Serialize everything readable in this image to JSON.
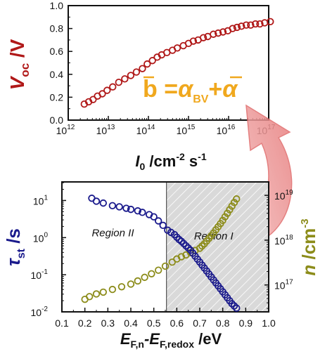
{
  "colors": {
    "top_series": "#b01818",
    "tau_series": "#1a1a8c",
    "n_series": "#8c8c1a",
    "equation": "#f0a81e",
    "arrow": "#e88a8a",
    "region_shade": "#d8d8d8"
  },
  "equation": {
    "b": "b",
    "eq": " =",
    "alpha": "α",
    "bv": "BV",
    "plus": "+",
    "alpha2": "α"
  },
  "chart_data": [
    {
      "type": "scatter",
      "xscale": "log",
      "xlim_exp": [
        12,
        17
      ],
      "ylim": [
        0.0,
        1.0
      ],
      "grid": false,
      "x_tick_labels": [
        "10",
        "10",
        "10",
        "10",
        "10",
        "10"
      ],
      "x_tick_exponents": [
        "12",
        "13",
        "14",
        "15",
        "16",
        "17"
      ],
      "y_tick_labels": [
        "0.0",
        "0.2",
        "0.4",
        "0.6",
        "0.8",
        "1.0"
      ],
      "xlabel": {
        "main": "I",
        "sub": "0",
        "rest": " /cm",
        "sup": "-2",
        "rest2": " s",
        "sup2": "-1"
      },
      "ylabel": {
        "main": "V",
        "sub": "oc",
        "rest": " /V"
      },
      "series": [
        {
          "marker": "circle-open",
          "x_exp": [
            12.4,
            12.51,
            12.62,
            12.73,
            12.85,
            12.97,
            13.11,
            13.26,
            13.41,
            13.56,
            13.7,
            13.85,
            13.97,
            14.1,
            14.22,
            14.33,
            14.46,
            14.6,
            14.72,
            14.87,
            15.0,
            15.12,
            15.24,
            15.37,
            15.48,
            15.62,
            15.74,
            15.86,
            15.98,
            16.1,
            16.21,
            16.32,
            16.44,
            16.55,
            16.67,
            16.78,
            16.9,
            17.04
          ],
          "y": [
            0.14,
            0.16,
            0.18,
            0.21,
            0.23,
            0.26,
            0.29,
            0.33,
            0.36,
            0.39,
            0.42,
            0.45,
            0.49,
            0.52,
            0.55,
            0.57,
            0.59,
            0.61,
            0.63,
            0.65,
            0.67,
            0.69,
            0.7,
            0.72,
            0.73,
            0.75,
            0.76,
            0.77,
            0.78,
            0.8,
            0.81,
            0.82,
            0.83,
            0.83,
            0.84,
            0.84,
            0.85,
            0.86
          ]
        }
      ]
    },
    {
      "type": "scatter",
      "xlim": [
        0.1,
        1.0
      ],
      "y_left_scale": "log",
      "y_left_exp_range": [
        -2,
        1.5
      ],
      "y_right_scale": "log",
      "y_right_exp_range": [
        16.4,
        19.3
      ],
      "grid": false,
      "x_tick_labels": [
        "0.1",
        "0.2",
        "0.3",
        "0.4",
        "0.5",
        "0.6",
        "0.7",
        "0.8",
        "0.9",
        "1.0"
      ],
      "y_left_tick_exponents": [
        "-2",
        "-1",
        "0",
        "1"
      ],
      "y_right_tick_exponents": [
        "17",
        "18",
        "19"
      ],
      "xlabel": {
        "main": "E",
        "sub": "F,n",
        "mid": "-E",
        "sub2": "F,redox",
        "rest": " /eV"
      },
      "ylabel_left": {
        "main": "τ",
        "sub": "st",
        "rest": " /s"
      },
      "ylabel_right": {
        "main": "n",
        "rest": " /cm",
        "sup": "-3"
      },
      "regions": [
        {
          "label": "Region II",
          "x_start": 0.1,
          "x_end": 0.555,
          "shaded": false
        },
        {
          "label": "Region I",
          "x_start": 0.555,
          "x_end": 1.0,
          "shaded": true
        }
      ],
      "series": [
        {
          "axis": "left",
          "marker": "circle-open",
          "x": [
            0.23,
            0.25,
            0.28,
            0.32,
            0.35,
            0.38,
            0.4,
            0.43,
            0.45,
            0.48,
            0.5,
            0.52,
            0.54,
            0.56,
            0.575,
            0.59,
            0.6,
            0.61,
            0.62,
            0.63,
            0.64,
            0.65,
            0.66,
            0.67,
            0.68,
            0.69,
            0.7,
            0.71,
            0.72,
            0.73,
            0.74,
            0.75,
            0.76,
            0.77,
            0.78,
            0.79,
            0.8,
            0.81,
            0.82,
            0.83,
            0.84,
            0.85,
            0.86
          ],
          "y_exp": [
            1.06,
            0.98,
            0.93,
            0.86,
            0.83,
            0.79,
            0.76,
            0.72,
            0.68,
            0.62,
            0.56,
            0.45,
            0.33,
            0.2,
            0.14,
            0.08,
            0.01,
            -0.05,
            -0.1,
            -0.16,
            -0.22,
            -0.28,
            -0.34,
            -0.42,
            -0.5,
            -0.58,
            -0.66,
            -0.74,
            -0.82,
            -0.9,
            -0.98,
            -1.06,
            -1.14,
            -1.22,
            -1.3,
            -1.38,
            -1.46,
            -1.54,
            -1.62,
            -1.7,
            -1.78,
            -1.84,
            -1.9
          ]
        },
        {
          "axis": "right",
          "marker": "circle-open",
          "x": [
            0.2,
            0.22,
            0.25,
            0.28,
            0.32,
            0.36,
            0.4,
            0.43,
            0.46,
            0.49,
            0.52,
            0.55,
            0.58,
            0.6,
            0.62,
            0.64,
            0.66,
            0.68,
            0.7,
            0.71,
            0.72,
            0.73,
            0.74,
            0.75,
            0.76,
            0.77,
            0.78,
            0.79,
            0.8,
            0.81,
            0.82,
            0.83,
            0.84,
            0.85,
            0.86
          ],
          "y_exp": [
            16.68,
            16.74,
            16.8,
            16.84,
            16.9,
            16.96,
            17.02,
            17.09,
            17.17,
            17.25,
            17.33,
            17.42,
            17.51,
            17.58,
            17.63,
            17.67,
            17.72,
            17.77,
            17.82,
            17.87,
            17.92,
            17.98,
            18.04,
            18.1,
            18.16,
            18.23,
            18.3,
            18.37,
            18.44,
            18.52,
            18.6,
            18.68,
            18.76,
            18.84,
            18.92
          ]
        }
      ]
    }
  ]
}
